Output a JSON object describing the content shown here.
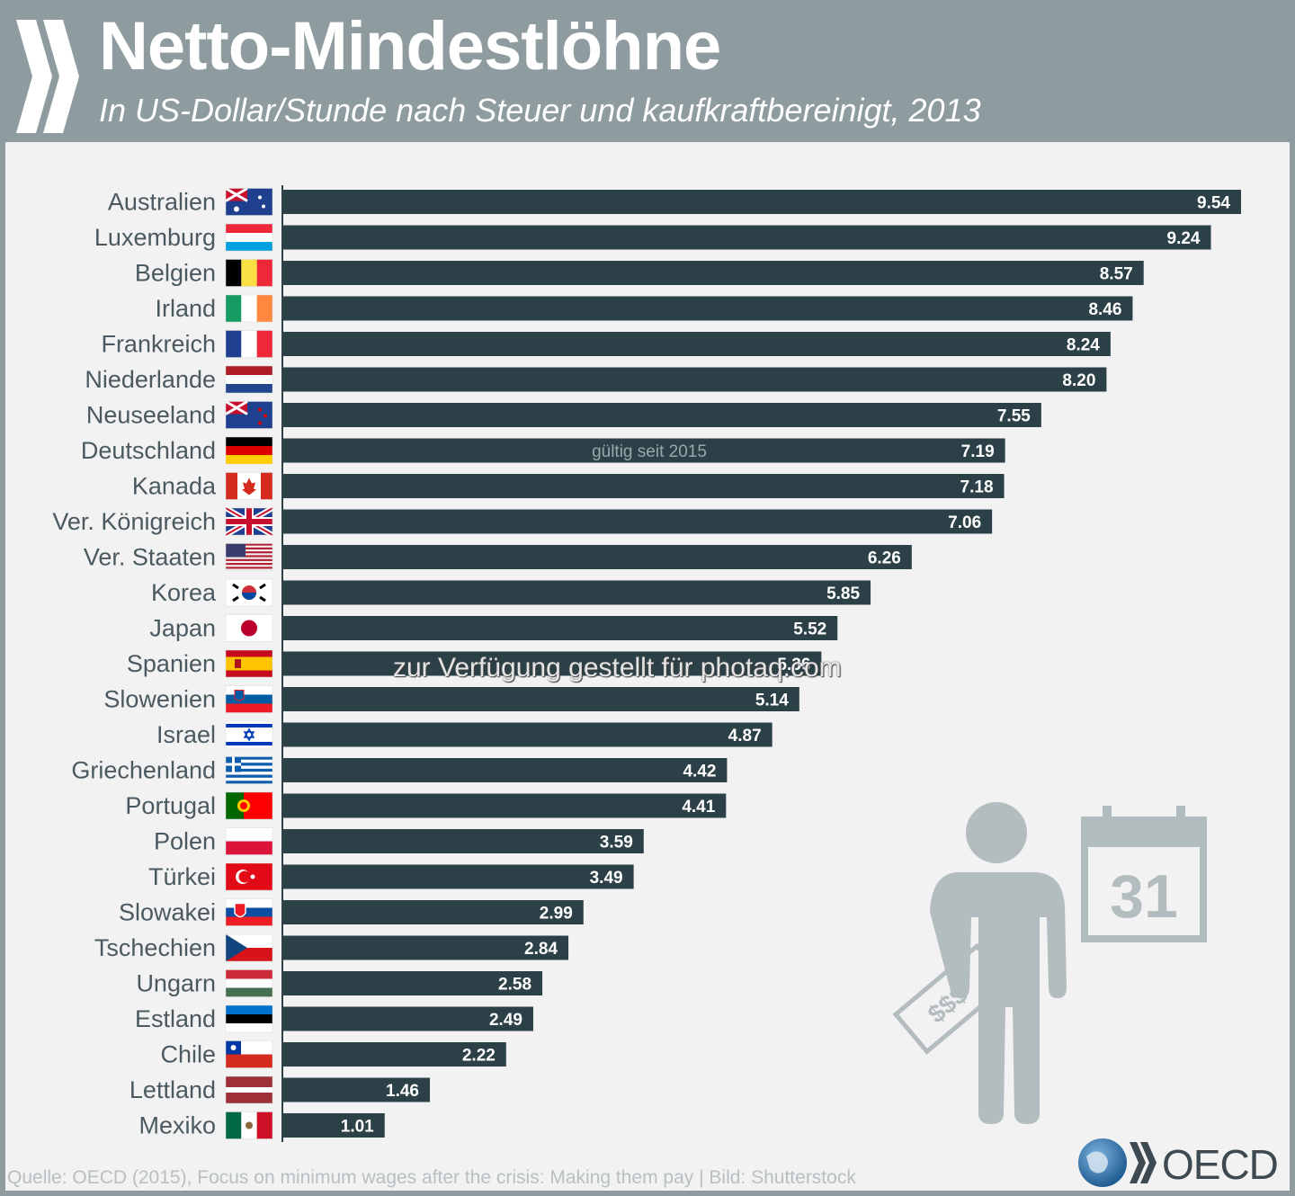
{
  "title": "Netto-Mindestlöhne",
  "subtitle": "In US-Dollar/Stunde nach Steuer und kaufkraftbereinigt, 2013",
  "source": "Quelle: OECD (2015), Focus on minimum wages after the crisis: Making them pay | Bild: Shutterstock",
  "watermark": "zur Verfügung gestellt für photaq.com",
  "logo_text": "OECD",
  "calendar_day": "31",
  "money_label": "$$$",
  "colors": {
    "bar": "#2c4147",
    "header": "#8e9c9f",
    "panel": "#f2f2f2",
    "label": "#4a5a60"
  },
  "chart_data": {
    "type": "bar",
    "orientation": "horizontal",
    "title": "Netto-Mindestlöhne",
    "subtitle": "In US-Dollar/Stunde nach Steuer und kaufkraftbereinigt, 2013",
    "categories": [
      "Australien",
      "Luxemburg",
      "Belgien",
      "Irland",
      "Frankreich",
      "Niederlande",
      "Neuseeland",
      "Deutschland",
      "Kanada",
      "Ver. Königreich",
      "Ver. Staaten",
      "Korea",
      "Japan",
      "Spanien",
      "Slowenien",
      "Israel",
      "Griechenland",
      "Portugal",
      "Polen",
      "Türkei",
      "Slowakei",
      "Tschechien",
      "Ungarn",
      "Estland",
      "Chile",
      "Lettland",
      "Mexiko"
    ],
    "values": [
      9.54,
      9.24,
      8.57,
      8.46,
      8.24,
      8.2,
      7.55,
      7.19,
      7.18,
      7.06,
      6.26,
      5.85,
      5.52,
      5.36,
      5.14,
      4.87,
      4.42,
      4.41,
      3.59,
      3.49,
      2.99,
      2.84,
      2.58,
      2.49,
      2.22,
      1.46,
      1.01
    ],
    "value_labels": [
      "9.54",
      "9.24",
      "8.57",
      "8.46",
      "8.24",
      "8.20",
      "7.55",
      "7.19",
      "7.18",
      "7.06",
      "6.26",
      "5.85",
      "5.52",
      "5.36",
      "5.14",
      "4.87",
      "4.42",
      "4.41",
      "3.59",
      "3.49",
      "2.99",
      "2.84",
      "2.58",
      "2.49",
      "2.22",
      "1.46",
      "1.01"
    ],
    "annotations": [
      {
        "category": "Deutschland",
        "text": "gültig seit 2015"
      }
    ],
    "xlim": [
      0,
      9.54
    ],
    "grid": false,
    "legend": "none"
  }
}
